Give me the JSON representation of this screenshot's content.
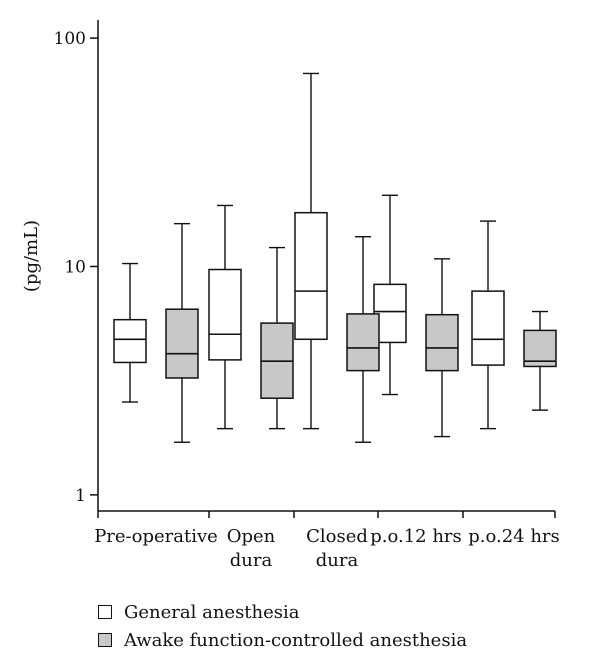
{
  "chart_data": {
    "type": "box",
    "ylabel": "(pg/mL)",
    "yscale": "log",
    "ylim": [
      0.85,
      120
    ],
    "yticks": [
      1,
      10,
      100
    ],
    "ytick_labels": [
      "1",
      "10",
      "100"
    ],
    "categories": [
      [
        "Pre-operative"
      ],
      [
        "Open",
        "dura"
      ],
      [
        "Closed",
        "dura"
      ],
      [
        "p.o.12 hrs"
      ],
      [
        "p.o.24 hrs"
      ]
    ],
    "series": [
      {
        "name": "General anesthesia",
        "color": "#ffffff",
        "boxes": [
          {
            "min": 2.55,
            "q1": 3.8,
            "median": 4.8,
            "q3": 5.85,
            "max": 10.3
          },
          {
            "min": 1.95,
            "q1": 3.9,
            "median": 5.05,
            "q3": 9.7,
            "max": 18.5
          },
          {
            "min": 1.95,
            "q1": 4.8,
            "median": 7.8,
            "q3": 17.2,
            "max": 70
          },
          {
            "min": 2.75,
            "q1": 4.65,
            "median": 6.35,
            "q3": 8.35,
            "max": 20.5
          },
          {
            "min": 1.95,
            "q1": 3.7,
            "median": 4.8,
            "q3": 7.8,
            "max": 15.8
          }
        ]
      },
      {
        "name": "Awake function-controlled anesthesia",
        "color": "#c8c8c8",
        "boxes": [
          {
            "min": 1.7,
            "q1": 3.25,
            "median": 4.15,
            "q3": 6.5,
            "max": 15.4
          },
          {
            "min": 1.95,
            "q1": 2.65,
            "median": 3.85,
            "q3": 5.65,
            "max": 12.1
          },
          {
            "min": 1.7,
            "q1": 3.5,
            "median": 4.4,
            "q3": 6.2,
            "max": 13.5
          },
          {
            "min": 1.8,
            "q1": 3.5,
            "median": 4.4,
            "q3": 6.15,
            "max": 10.8
          },
          {
            "min": 2.35,
            "q1": 3.65,
            "median": 3.85,
            "q3": 5.25,
            "max": 6.35
          }
        ]
      }
    ],
    "legend": {
      "position": "bottom-left",
      "items": [
        {
          "label": "General anesthesia",
          "color": "#ffffff"
        },
        {
          "label": "Awake function-controlled anesthesia",
          "color": "#c8c8c8"
        }
      ]
    }
  }
}
